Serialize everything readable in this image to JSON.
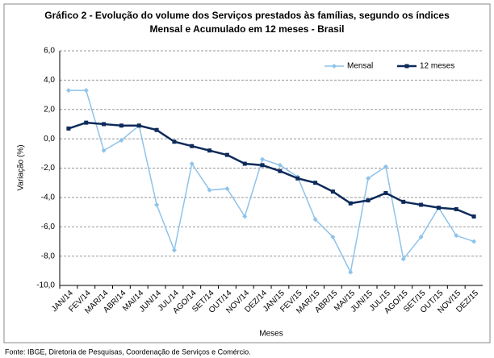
{
  "chart_data": {
    "type": "line",
    "title": "Gráfico 2 - Evolução do volume dos Serviços prestados às famílias, segundo os índices",
    "subtitle": "Mensal e Acumulado em 12 meses - Brasil",
    "y_label": "Variação (%)",
    "x_label": "Meses",
    "source": "Fonte: IBGE, Diretoria de Pesquisas, Coordenação de Serviços e Comércio.",
    "categories": [
      "JAN/14",
      "FEV/14",
      "MAR/14",
      "ABR/14",
      "MAI/14",
      "JUN/14",
      "JUL/14",
      "AGO/14",
      "SET/14",
      "OUT/14",
      "NOV/14",
      "DEZ/14",
      "JAN/15",
      "FEV/15",
      "MAR/15",
      "ABR/15",
      "MAI/15",
      "JUN/15",
      "JUL/15",
      "AGO/15",
      "SET/15",
      "OUT/15",
      "NOV/15",
      "DEZ/15"
    ],
    "series": [
      {
        "name": "Mensal",
        "color": "#8ec3ea",
        "values": [
          3.3,
          3.3,
          -0.8,
          -0.1,
          0.9,
          -4.5,
          -7.6,
          -1.7,
          -3.5,
          -3.4,
          -5.3,
          -1.4,
          -1.8,
          -2.6,
          -5.5,
          -6.7,
          -9.1,
          -2.7,
          -1.9,
          -8.2,
          -6.7,
          -4.7,
          -6.6,
          -7.0
        ]
      },
      {
        "name": "12 meses",
        "color": "#0d2a5a",
        "values": [
          0.7,
          1.1,
          1.0,
          0.9,
          0.9,
          0.6,
          -0.2,
          -0.5,
          -0.8,
          -1.1,
          -1.7,
          -1.8,
          -2.2,
          -2.7,
          -3.0,
          -3.6,
          -4.4,
          -4.2,
          -3.7,
          -4.3,
          -4.5,
          -4.7,
          -4.8,
          -5.3
        ]
      }
    ],
    "ylim": [
      -10,
      6
    ],
    "yticks": [
      {
        "value": -10,
        "label": "-10,0"
      },
      {
        "value": -8,
        "label": "-8,0"
      },
      {
        "value": -6,
        "label": "-6,0"
      },
      {
        "value": -4,
        "label": "-4,0"
      },
      {
        "value": -2,
        "label": "-2,0"
      },
      {
        "value": 0,
        "label": "0,0"
      },
      {
        "value": 2,
        "label": "2,0"
      },
      {
        "value": 4,
        "label": "4,0"
      },
      {
        "value": 6,
        "label": "6,0"
      }
    ],
    "grid": true,
    "legend": "top-right"
  }
}
